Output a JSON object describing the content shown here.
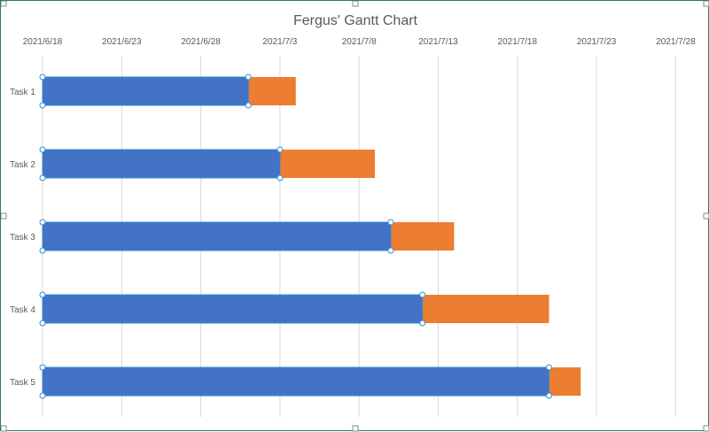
{
  "chart_data": {
    "type": "bar",
    "orientation": "horizontal",
    "stacked": true,
    "title": "Fergus' Gantt Chart",
    "xlabel": "",
    "ylabel": "",
    "x_axis_position": "top",
    "x_axis_type": "date",
    "xlim": [
      "2021/6/18",
      "2021/7/31"
    ],
    "x_tick_labels": [
      "2021/6/18",
      "2021/6/23",
      "2021/6/28",
      "2021/7/3",
      "2021/7/8",
      "2021/7/13",
      "2021/7/18",
      "2021/7/23",
      "2021/7/28"
    ],
    "categories": [
      "Task 1",
      "Task 2",
      "Task 3",
      "Task 4",
      "Task 5"
    ],
    "series": [
      {
        "color": "#4472c4",
        "start": [
          "2021/6/18",
          "2021/6/18",
          "2021/6/18",
          "2021/6/18",
          "2021/6/18"
        ],
        "end": [
          "2021/7/1",
          "2021/7/3",
          "2021/7/10",
          "2021/7/12",
          "2021/7/20"
        ]
      },
      {
        "color": "#ed7d31",
        "start": [
          "2021/7/1",
          "2021/7/3",
          "2021/7/10",
          "2021/7/12",
          "2021/7/20"
        ],
        "end": [
          "2021/7/4",
          "2021/7/9",
          "2021/7/14",
          "2021/7/20",
          "2021/7/22"
        ]
      }
    ],
    "grid": {
      "vertical": true,
      "horizontal": false
    },
    "legend": "none",
    "selected_series": 0
  }
}
